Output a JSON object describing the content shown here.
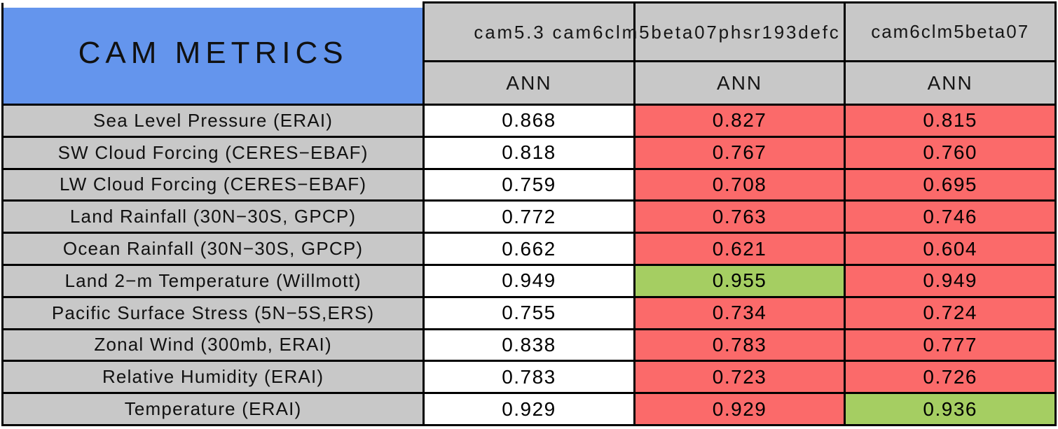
{
  "title": "CAM METRICS",
  "header": {
    "overflow_text": "cam5.3 cam6clm5beta07phsr193defc",
    "columns": [
      {
        "name": "cam5.3",
        "subheader": "ANN"
      },
      {
        "name": "cam6clm5beta07phsr193defc",
        "subheader": "ANN"
      },
      {
        "name": "cam6clm5beta07",
        "subheader": "ANN"
      }
    ]
  },
  "rows": [
    {
      "metric": "Sea Level Pressure (ERAI)",
      "values": [
        "0.868",
        "0.827",
        "0.815"
      ],
      "cell_colors": [
        "white",
        "red",
        "red"
      ]
    },
    {
      "metric": "SW Cloud Forcing (CERES−EBAF)",
      "values": [
        "0.818",
        "0.767",
        "0.760"
      ],
      "cell_colors": [
        "white",
        "red",
        "red"
      ]
    },
    {
      "metric": "LW Cloud Forcing (CERES−EBAF)",
      "values": [
        "0.759",
        "0.708",
        "0.695"
      ],
      "cell_colors": [
        "white",
        "red",
        "red"
      ]
    },
    {
      "metric": "Land Rainfall (30N−30S, GPCP)",
      "values": [
        "0.772",
        "0.763",
        "0.746"
      ],
      "cell_colors": [
        "white",
        "red",
        "red"
      ]
    },
    {
      "metric": "Ocean Rainfall (30N−30S, GPCP)",
      "values": [
        "0.662",
        "0.621",
        "0.604"
      ],
      "cell_colors": [
        "white",
        "red",
        "red"
      ]
    },
    {
      "metric": "Land 2−m Temperature (Willmott)",
      "values": [
        "0.949",
        "0.955",
        "0.949"
      ],
      "cell_colors": [
        "white",
        "green",
        "red"
      ]
    },
    {
      "metric": "Pacific Surface Stress (5N−5S,ERS)",
      "values": [
        "0.755",
        "0.734",
        "0.724"
      ],
      "cell_colors": [
        "white",
        "red",
        "red"
      ]
    },
    {
      "metric": "Zonal Wind (300mb, ERAI)",
      "values": [
        "0.838",
        "0.783",
        "0.777"
      ],
      "cell_colors": [
        "white",
        "red",
        "red"
      ]
    },
    {
      "metric": "Relative Humidity (ERAI)",
      "values": [
        "0.783",
        "0.723",
        "0.726"
      ],
      "cell_colors": [
        "white",
        "red",
        "red"
      ]
    },
    {
      "metric": "Temperature (ERAI)",
      "values": [
        "0.929",
        "0.929",
        "0.936"
      ],
      "cell_colors": [
        "white",
        "red",
        "green"
      ]
    }
  ],
  "colors": {
    "blue": "#6495ED",
    "gray": "#C8C8C8",
    "red": "#FB6A6A",
    "green": "#A5CE62",
    "white": "#FFFFFF",
    "border": "#000000"
  },
  "chart_data": {
    "type": "table",
    "title": "CAM METRICS",
    "columns": [
      "cam5.3",
      "cam6clm5beta07phsr193defc",
      "cam6clm5beta07"
    ],
    "column_subheaders": [
      "ANN",
      "ANN",
      "ANN"
    ],
    "metrics": [
      "Sea Level Pressure (ERAI)",
      "SW Cloud Forcing (CERES−EBAF)",
      "LW Cloud Forcing (CERES−EBAF)",
      "Land Rainfall (30N−30S, GPCP)",
      "Ocean Rainfall (30N−30S, GPCP)",
      "Land 2−m Temperature (Willmott)",
      "Pacific Surface Stress (5N−5S,ERS)",
      "Zonal Wind (300mb, ERAI)",
      "Relative Humidity (ERAI)",
      "Temperature (ERAI)"
    ],
    "values": [
      [
        0.868,
        0.827,
        0.815
      ],
      [
        0.818,
        0.767,
        0.76
      ],
      [
        0.759,
        0.708,
        0.695
      ],
      [
        0.772,
        0.763,
        0.746
      ],
      [
        0.662,
        0.621,
        0.604
      ],
      [
        0.949,
        0.955,
        0.949
      ],
      [
        0.755,
        0.734,
        0.724
      ],
      [
        0.838,
        0.783,
        0.777
      ],
      [
        0.783,
        0.723,
        0.726
      ],
      [
        0.929,
        0.929,
        0.936
      ]
    ],
    "cell_colors": [
      [
        "white",
        "red",
        "red"
      ],
      [
        "white",
        "red",
        "red"
      ],
      [
        "white",
        "red",
        "red"
      ],
      [
        "white",
        "red",
        "red"
      ],
      [
        "white",
        "red",
        "red"
      ],
      [
        "white",
        "green",
        "red"
      ],
      [
        "white",
        "red",
        "red"
      ],
      [
        "white",
        "red",
        "red"
      ],
      [
        "white",
        "red",
        "red"
      ],
      [
        "white",
        "red",
        "green"
      ]
    ]
  }
}
